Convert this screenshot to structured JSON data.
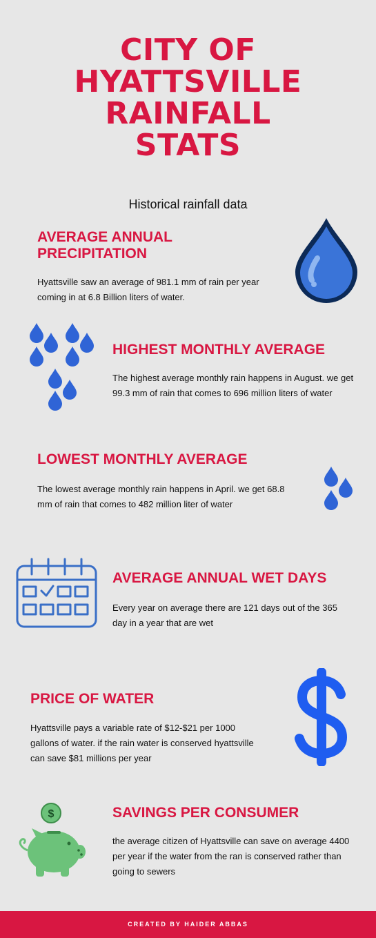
{
  "title_lines": [
    "CITY OF",
    "HYATTSVILLE",
    "RAINFALL",
    "STATS"
  ],
  "subtitle": "Historical rainfall data",
  "sections": [
    {
      "heading_lines": [
        "AVERAGE ANNUAL",
        "PRECIPITATION"
      ],
      "body": "Hyattsville saw an average of 981.1  mm of rain per year coming in at 6.8 Billion liters of water.",
      "icon": "water-drop-icon"
    },
    {
      "heading": "HIGHEST MONTHLY AVERAGE",
      "body": "The highest average monthly rain happens in August. we get 99.3 mm of rain that comes to 696 million liters of water",
      "icon": "rain-drops-icon"
    },
    {
      "heading": "LOWEST MONTHLY AVERAGE",
      "body": "The lowest average monthly rain happens in April. we get 68.8 mm of rain that comes to 482 million liter of water",
      "icon": "small-rain-drops-icon"
    },
    {
      "heading": "AVERAGE ANNUAL WET DAYS",
      "body": "Every year on average there are 121 days out of the 365 day in a year that are wet",
      "icon": "calendar-icon"
    },
    {
      "heading": "PRICE OF WATER",
      "body": "Hyattsville pays a variable rate of $12-$21 per 1000 gallons of water. if the rain water is conserved hyattsville can save $81 millions per year",
      "icon": "dollar-sign-icon"
    },
    {
      "heading": "SAVINGS PER CONSUMER",
      "body": "the average citizen of Hyattsville can save on average 4400 per year if the water from the ran is conserved rather than going to sewers",
      "icon": "piggy-bank-icon"
    }
  ],
  "footer": "CREATED BY HAIDER ABBAS",
  "colors": {
    "accent": "#d81742",
    "drop_blue": "#2f64d6",
    "drop_dark": "#0c2a57",
    "calendar_blue": "#3a6fc7",
    "dollar_blue": "#1f5df0",
    "piggy_green": "#6cc27a"
  }
}
